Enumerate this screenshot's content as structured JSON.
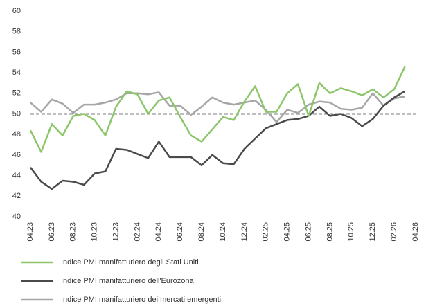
{
  "chart_data": {
    "type": "line",
    "categories": [
      "04.23",
      null,
      "06.23",
      null,
      "08.23",
      null,
      "10.23",
      null,
      "12.23",
      null,
      "02.24",
      null,
      "04.24",
      null,
      "06.24",
      null,
      "08.24",
      null,
      "10.24",
      null,
      "12.24",
      null,
      "02.25",
      null,
      "04.25",
      null,
      "06.25",
      null,
      "08.25",
      null,
      "10.25",
      null,
      "12.25",
      null,
      "02.26",
      null,
      "04.26"
    ],
    "series": [
      {
        "name": "Indice PMI manifatturiero degli Stati Uniti",
        "color": "#8cc56a",
        "values": [
          48.4,
          46.3,
          49.0,
          47.9,
          49.8,
          50.0,
          49.4,
          47.9,
          50.7,
          52.2,
          51.9,
          50.0,
          51.3,
          51.6,
          49.7,
          47.9,
          47.3,
          48.5,
          49.7,
          49.4,
          51.2,
          52.7,
          50.2,
          50.2,
          52.0,
          52.9,
          49.8,
          53.0,
          52.0,
          52.5,
          52.2,
          51.8,
          52.4,
          51.6,
          52.4,
          54.6,
          null
        ]
      },
      {
        "name": "Indice PMI manifatturiero dell'Eurozona",
        "color": "#4a4a4a",
        "values": [
          44.8,
          43.4,
          42.7,
          43.5,
          43.4,
          43.1,
          44.2,
          44.4,
          46.6,
          46.5,
          46.1,
          45.7,
          47.3,
          45.8,
          45.8,
          45.8,
          45.0,
          46.0,
          45.2,
          45.1,
          46.6,
          47.6,
          48.6,
          49.0,
          49.4,
          49.5,
          49.8,
          50.7,
          49.8,
          50.0,
          49.6,
          48.8,
          49.5,
          50.8,
          51.6,
          52.2,
          null
        ]
      },
      {
        "name": "Indice PMI manifatturiero dei mercati emergenti",
        "color": "#a6a6a6",
        "values": [
          51.1,
          50.2,
          51.4,
          51.0,
          50.1,
          50.9,
          50.9,
          51.1,
          51.4,
          52.0,
          52.0,
          51.9,
          52.1,
          50.8,
          50.8,
          49.9,
          50.7,
          51.6,
          51.1,
          50.9,
          51.1,
          51.3,
          50.4,
          49.2,
          50.4,
          50.1,
          50.9,
          51.2,
          51.1,
          50.5,
          50.4,
          50.6,
          52.0,
          50.8,
          51.5,
          51.7,
          null
        ]
      }
    ],
    "reference_line": 50,
    "ylim": [
      40,
      60
    ],
    "yticks": [
      40,
      42,
      44,
      46,
      48,
      50,
      52,
      54,
      56,
      58,
      60
    ],
    "legend": "bottom"
  }
}
